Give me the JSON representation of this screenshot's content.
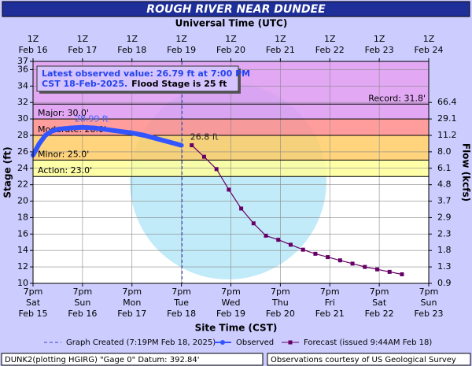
{
  "chart_data": {
    "type": "hydrograph",
    "title": "ROUGH RIVER NEAR DUNDEE",
    "x2_label": "Universal Time (UTC)",
    "xlabel": "Site Time (CST)",
    "ylabel": "Stage (ft)",
    "y2label": "Flow (kcfs)",
    "xlim": [
      "2025-02-15T19:00",
      "2025-02-23T19:00"
    ],
    "xticks": [
      {
        "value": "2025-02-15T19:00",
        "label": [
          "7pm",
          "Sat",
          "Feb 15"
        ]
      },
      {
        "value": "2025-02-16T19:00",
        "label": [
          "7pm",
          "Sun",
          "Feb 16"
        ]
      },
      {
        "value": "2025-02-17T19:00",
        "label": [
          "7pm",
          "Mon",
          "Feb 17"
        ]
      },
      {
        "value": "2025-02-18T19:00",
        "label": [
          "7pm",
          "Tue",
          "Feb 18"
        ]
      },
      {
        "value": "2025-02-19T19:00",
        "label": [
          "7pm",
          "Wed",
          "Feb 19"
        ]
      },
      {
        "value": "2025-02-20T19:00",
        "label": [
          "7pm",
          "Thu",
          "Feb 20"
        ]
      },
      {
        "value": "2025-02-21T19:00",
        "label": [
          "7pm",
          "Fri",
          "Feb 21"
        ]
      },
      {
        "value": "2025-02-22T19:00",
        "label": [
          "7pm",
          "Sat",
          "Feb 22"
        ]
      },
      {
        "value": "2025-02-23T19:00",
        "label": [
          "7pm",
          "Sun",
          "Feb 23"
        ]
      }
    ],
    "x2ticks": [
      {
        "value": "2025-02-15T19:00",
        "label": [
          "1Z",
          "Feb 16"
        ]
      },
      {
        "value": "2025-02-16T19:00",
        "label": [
          "1Z",
          "Feb 17"
        ]
      },
      {
        "value": "2025-02-17T19:00",
        "label": [
          "1Z",
          "Feb 18"
        ]
      },
      {
        "value": "2025-02-18T19:00",
        "label": [
          "1Z",
          "Feb 19"
        ]
      },
      {
        "value": "2025-02-19T19:00",
        "label": [
          "1Z",
          "Feb 20"
        ]
      },
      {
        "value": "2025-02-20T19:00",
        "label": [
          "1Z",
          "Feb 21"
        ]
      },
      {
        "value": "2025-02-21T19:00",
        "label": [
          "1Z",
          "Feb 22"
        ]
      },
      {
        "value": "2025-02-22T19:00",
        "label": [
          "1Z",
          "Feb 23"
        ]
      },
      {
        "value": "2025-02-23T19:00",
        "label": [
          "1Z",
          "Feb 24"
        ]
      }
    ],
    "ylim": [
      10,
      37
    ],
    "yticks": [
      10,
      12,
      14,
      16,
      18,
      20,
      22,
      24,
      26,
      28,
      30,
      32,
      34,
      36,
      37
    ],
    "flow_ticks": [
      {
        "stage": 10,
        "flow": 0.9
      },
      {
        "stage": 12,
        "flow": 1.3
      },
      {
        "stage": 14,
        "flow": 1.8
      },
      {
        "stage": 16,
        "flow": 2.3
      },
      {
        "stage": 18,
        "flow": 2.9
      },
      {
        "stage": 20,
        "flow": 3.7
      },
      {
        "stage": 22,
        "flow": 4.8
      },
      {
        "stage": 24,
        "flow": 6.1
      },
      {
        "stage": 26,
        "flow": 8.0,
        "label": "8.0"
      },
      {
        "stage": 28,
        "flow": 11.2
      },
      {
        "stage": 30,
        "flow": 29.1
      },
      {
        "stage": 32,
        "flow": 66.4
      }
    ],
    "grid": true,
    "flood_categories": [
      {
        "stage": 23,
        "label": "Action: 23.0'",
        "color": "#ffff99"
      },
      {
        "stage": 25,
        "label": "Minor: 25.0'",
        "color": "#ffcc66"
      },
      {
        "stage": 28,
        "label": "Moderate: 28.0'",
        "color": "#ff8c8c"
      },
      {
        "stage": 30,
        "label": "Major: 30.0'",
        "color": "#dd99f2"
      }
    ],
    "record": {
      "stage": 31.8,
      "label": "Record: 31.8'"
    },
    "latest_box": [
      "Latest observed value: 26.79 ft at 7:00 PM",
      "CST 18-Feb-2025.",
      "Flood Stage is 25 ft"
    ],
    "graph_created": {
      "x": "2025-02-18T19:19",
      "label": "Graph Created (7:19PM Feb 18, 2025)"
    },
    "series": [
      {
        "name": "Observed",
        "color": "#3355ff",
        "x": [
          "2025-02-15T19:00",
          "2025-02-15T22:00",
          "2025-02-16T01:00",
          "2025-02-16T04:00",
          "2025-02-16T07:00",
          "2025-02-16T13:00",
          "2025-02-16T19:00",
          "2025-02-17T01:00",
          "2025-02-17T07:00",
          "2025-02-17T13:00",
          "2025-02-17T19:00",
          "2025-02-18T01:00",
          "2025-02-18T07:00",
          "2025-02-18T13:00",
          "2025-02-18T19:00"
        ],
        "values": [
          25.6,
          27.0,
          28.0,
          28.5,
          28.75,
          28.9,
          28.99,
          28.9,
          28.7,
          28.5,
          28.3,
          28.0,
          27.6,
          27.2,
          26.79
        ],
        "annotation": "28.99 ft"
      },
      {
        "name": "Forecast (issued 9:44AM Feb 18)",
        "color": "#660066",
        "x": [
          "2025-02-19T00:00",
          "2025-02-19T06:00",
          "2025-02-19T12:00",
          "2025-02-19T18:00",
          "2025-02-20T00:00",
          "2025-02-20T06:00",
          "2025-02-20T12:00",
          "2025-02-20T18:00",
          "2025-02-21T00:00",
          "2025-02-21T06:00",
          "2025-02-21T12:00",
          "2025-02-21T18:00",
          "2025-02-22T00:00",
          "2025-02-22T06:00",
          "2025-02-22T12:00",
          "2025-02-22T18:00",
          "2025-02-23T00:00",
          "2025-02-23T06:00"
        ],
        "values": [
          26.8,
          25.4,
          23.9,
          21.4,
          19.1,
          17.3,
          15.8,
          15.3,
          14.7,
          14.1,
          13.6,
          13.2,
          12.8,
          12.4,
          12.0,
          11.7,
          11.4,
          11.1
        ],
        "annotation": "26.8 ft"
      }
    ],
    "footer_left": "DUNK2(plotting HGIRG) \"Gage 0\" Datum: 392.84'",
    "footer_right": "Observations courtesy of US Geological Survey"
  }
}
